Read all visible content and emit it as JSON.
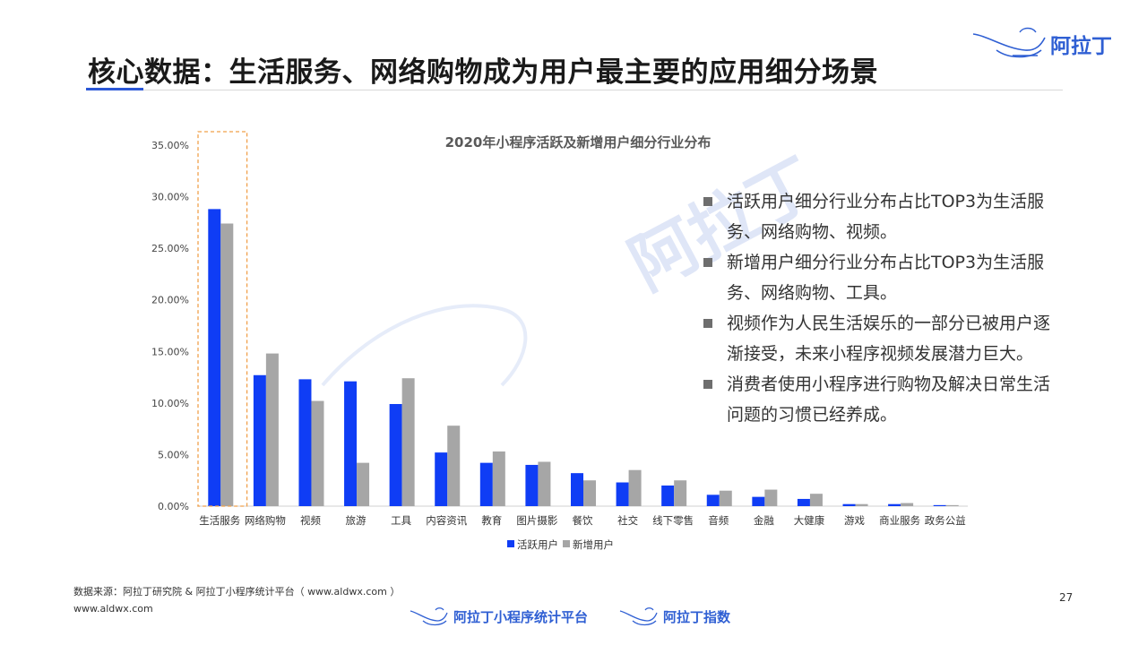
{
  "header": {
    "title": "核心数据：生活服务、网络购物成为用户最主要的应用细分场景",
    "brand_name": "阿拉丁"
  },
  "chart_data": {
    "type": "bar",
    "title": "2020年小程序活跃及新增用户细分行业分布",
    "categories": [
      "生活服务",
      "网络购物",
      "视频",
      "旅游",
      "工具",
      "内容资讯",
      "教育",
      "图片摄影",
      "餐饮",
      "社交",
      "线下零售",
      "音频",
      "金融",
      "大健康",
      "游戏",
      "商业服务",
      "政务公益"
    ],
    "series": [
      {
        "name": "活跃用户",
        "color": "#0f3df5",
        "values": [
          28.8,
          12.7,
          12.3,
          12.1,
          9.9,
          5.2,
          4.2,
          4.0,
          3.2,
          2.3,
          2.0,
          1.1,
          0.9,
          0.7,
          0.2,
          0.2,
          0.1
        ]
      },
      {
        "name": "新增用户",
        "color": "#a6a6a6",
        "values": [
          27.4,
          14.8,
          10.2,
          4.2,
          12.4,
          7.8,
          5.3,
          4.3,
          2.5,
          3.5,
          2.5,
          1.5,
          1.6,
          1.2,
          0.2,
          0.3,
          0.1
        ]
      }
    ],
    "ylim": [
      0,
      35
    ],
    "yticks": [
      "0.00%",
      "5.00%",
      "10.00%",
      "15.00%",
      "20.00%",
      "25.00%",
      "30.00%",
      "35.00%"
    ],
    "highlight_category": "生活服务",
    "highlight_color": "#f0a04b",
    "grid": false,
    "legend_position": "bottom"
  },
  "watermark": "阿拉丁",
  "bullets": [
    "活跃用户细分行业分布占比TOP3为生活服务、网络购物、视频。",
    "新增用户细分行业分布占比TOP3为生活服务、网络购物、工具。",
    "视频作为人民生活娱乐的一部分已被用户逐渐接受，未来小程序视频发展潜力巨大。",
    "消费者使用小程序进行购物及解决日常生活问题的习惯已经养成。"
  ],
  "footer": {
    "source": "数据来源：阿拉丁研究院 & 阿拉丁小程序统计平台（ www.aldwx.com ）",
    "site": "www.aldwx.com",
    "page_number": "27",
    "brands": [
      "阿拉丁小程序统计平台",
      "阿拉丁指数"
    ]
  },
  "colors": {
    "accent": "#2b57d6",
    "brand": "#2f5fd3"
  }
}
